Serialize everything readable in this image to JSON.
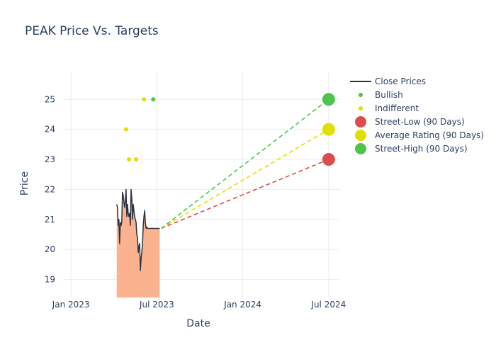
{
  "chart_data": {
    "type": "line",
    "title": "PEAK Price Vs. Targets",
    "xlabel": "Date",
    "ylabel": "Price",
    "x_ticks": [
      "Jan 2023",
      "Jul 2023",
      "Jan 2024",
      "Jul 2024"
    ],
    "y_ticks": [
      19,
      20,
      21,
      22,
      23,
      24,
      25
    ],
    "ylim": [
      18.4,
      25.95
    ],
    "xlim_months": [
      -0.5,
      18.8
    ],
    "close_prices": {
      "name": "Close Prices",
      "x_months": [
        3.2,
        3.25,
        3.3,
        3.35,
        3.4,
        3.45,
        3.5,
        3.55,
        3.6,
        3.65,
        3.7,
        3.75,
        3.8,
        3.85,
        3.9,
        3.95,
        4.0,
        4.05,
        4.1,
        4.15,
        4.2,
        4.25,
        4.3,
        4.35,
        4.4,
        4.45,
        4.5,
        4.55,
        4.6,
        4.65,
        4.7,
        4.75,
        4.8,
        4.85,
        4.9,
        4.95,
        5.0,
        5.05,
        5.1,
        5.15,
        5.2,
        5.25,
        5.3,
        5.35,
        5.4,
        5.45,
        5.5,
        5.55,
        5.6,
        5.65,
        5.7,
        5.75,
        5.8,
        5.85,
        5.9,
        5.95,
        6.0,
        6.05,
        6.1,
        6.15,
        6.2
      ],
      "values": [
        21.5,
        21.4,
        20.8,
        21.0,
        20.2,
        20.9,
        20.8,
        20.9,
        21.9,
        21.8,
        21.6,
        21.4,
        21.6,
        22.0,
        21.1,
        21.5,
        21.2,
        21.1,
        21.2,
        20.8,
        22.0,
        21.7,
        21.0,
        21.5,
        21.3,
        21.1,
        21.0,
        20.9,
        20.5,
        20.4,
        19.9,
        20.1,
        20.2,
        19.3,
        19.7,
        19.9,
        20.2,
        20.8,
        21.1,
        21.3,
        20.9,
        20.7,
        20.75,
        20.7,
        20.7,
        20.7,
        20.7,
        20.7,
        20.7,
        20.7,
        20.7,
        20.7,
        20.7,
        20.7,
        20.7,
        20.7,
        20.7,
        20.7,
        20.7,
        20.7,
        20.7
      ]
    },
    "bullish": {
      "name": "Bullish",
      "points": [
        {
          "x_month": 5.75,
          "y": 25.0
        }
      ]
    },
    "indifferent": {
      "name": "Indifferent",
      "points": [
        {
          "x_month": 3.85,
          "y": 24.0
        },
        {
          "x_month": 4.05,
          "y": 23.0
        },
        {
          "x_month": 4.55,
          "y": 23.0
        },
        {
          "x_month": 5.1,
          "y": 25.0
        }
      ]
    },
    "projection_start": {
      "x_month": 6.3,
      "y": 20.7
    },
    "projection_end_month": 18.0,
    "street_low": {
      "name": "Street-Low (90 Days)",
      "value": 23.0,
      "color": "#dc4c4c"
    },
    "average_rating": {
      "name": "Average Rating (90 Days)",
      "value": 24.0,
      "color": "#e0e000"
    },
    "street_high": {
      "name": "Street-High (90 Days)",
      "value": 25.0,
      "color": "#4ec44e"
    },
    "colors": {
      "close_line": "#2d3340",
      "fill": "#fbb28f",
      "bullish": "#4ec44e",
      "indifferent": "#e0e000",
      "grid": "#ebebeb",
      "text": "#2a3f5f"
    },
    "legend": {
      "placement": "right",
      "entries": [
        "Close Prices",
        "Bullish",
        "Indifferent",
        "Street-Low (90 Days)",
        "Average Rating (90 Days)",
        "Street-High (90 Days)"
      ]
    }
  }
}
